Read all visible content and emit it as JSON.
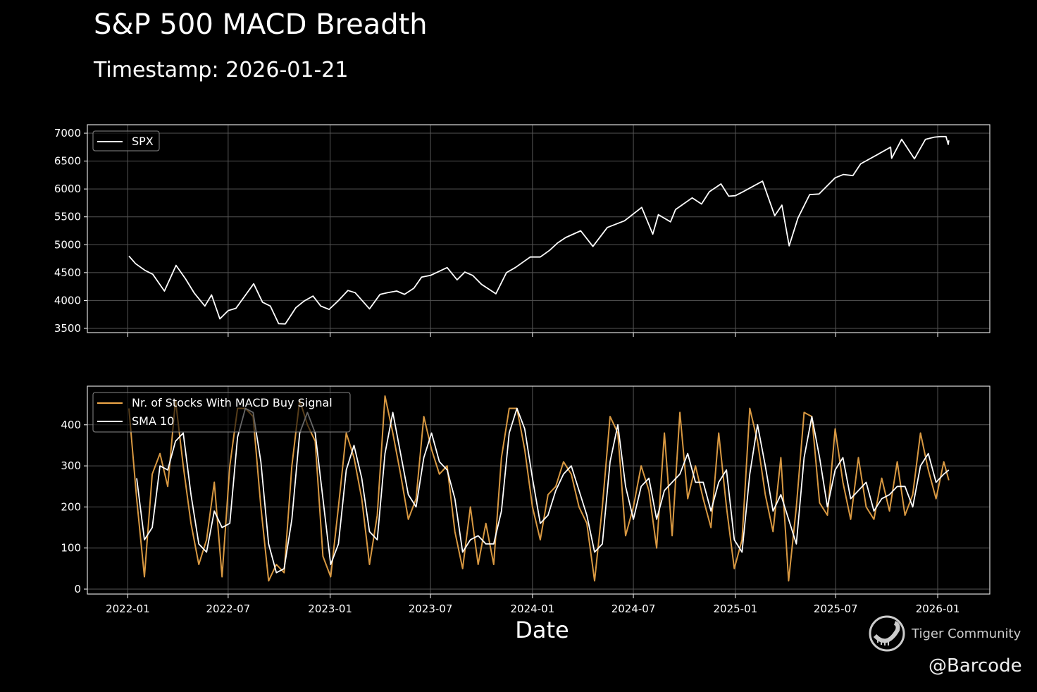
{
  "title": "S&P 500 MACD Breadth",
  "subtitle": "Timestamp: 2026-01-21",
  "watermark": {
    "brand": "Tiger Community",
    "handle": "@Barcode",
    "icon": "tiger-logo-icon"
  },
  "chart_data": [
    {
      "type": "line",
      "xlabel": "",
      "ylabel": "",
      "xlim": [
        "2021-10-20",
        "2026-04-05"
      ],
      "ylim": [
        3424,
        7152
      ],
      "yticks": [
        3500,
        4000,
        4500,
        5000,
        5500,
        6000,
        6500,
        7000
      ],
      "xticks": [
        "2022-01",
        "2022-07",
        "2023-01",
        "2023-07",
        "2024-01",
        "2024-07",
        "2025-01",
        "2025-07",
        "2026-01"
      ],
      "grid": true,
      "legend": "top-left",
      "series": [
        {
          "name": "SPX",
          "color": "#ffffff",
          "x": [
            "2022-01-03",
            "2022-01-15",
            "2022-02-01",
            "2022-02-15",
            "2022-03-08",
            "2022-03-29",
            "2022-04-15",
            "2022-05-01",
            "2022-05-20",
            "2022-06-01",
            "2022-06-16",
            "2022-07-01",
            "2022-07-15",
            "2022-08-16",
            "2022-09-01",
            "2022-09-15",
            "2022-09-30",
            "2022-10-12",
            "2022-10-31",
            "2022-11-15",
            "2022-12-01",
            "2022-12-15",
            "2022-12-30",
            "2023-01-15",
            "2023-02-02",
            "2023-02-15",
            "2023-03-13",
            "2023-04-01",
            "2023-04-15",
            "2023-05-01",
            "2023-05-15",
            "2023-06-01",
            "2023-06-15",
            "2023-07-01",
            "2023-07-31",
            "2023-08-18",
            "2023-09-01",
            "2023-09-15",
            "2023-10-01",
            "2023-10-27",
            "2023-11-15",
            "2023-12-01",
            "2023-12-28",
            "2024-01-15",
            "2024-02-01",
            "2024-02-15",
            "2024-03-01",
            "2024-03-28",
            "2024-04-19",
            "2024-05-15",
            "2024-06-15",
            "2024-07-16",
            "2024-08-05",
            "2024-08-15",
            "2024-09-06",
            "2024-09-15",
            "2024-10-15",
            "2024-11-01",
            "2024-11-15",
            "2024-12-06",
            "2024-12-20",
            "2025-01-01",
            "2025-01-15",
            "2025-02-19",
            "2025-03-13",
            "2025-03-26",
            "2025-04-08",
            "2025-04-24",
            "2025-05-15",
            "2025-06-01",
            "2025-06-30",
            "2025-07-15",
            "2025-08-01",
            "2025-08-15",
            "2025-09-15",
            "2025-10-08",
            "2025-10-10",
            "2025-10-28",
            "2025-11-20",
            "2025-12-10",
            "2025-12-26",
            "2026-01-06",
            "2026-01-16",
            "2026-01-20",
            "2026-01-21"
          ],
          "values": [
            4797,
            4660,
            4540,
            4470,
            4170,
            4630,
            4390,
            4130,
            3900,
            4100,
            3670,
            3820,
            3860,
            4300,
            3970,
            3900,
            3585,
            3580,
            3870,
            3990,
            4080,
            3900,
            3840,
            3990,
            4180,
            4140,
            3850,
            4110,
            4140,
            4170,
            4110,
            4220,
            4420,
            4450,
            4590,
            4370,
            4510,
            4450,
            4290,
            4120,
            4500,
            4590,
            4780,
            4780,
            4900,
            5030,
            5130,
            5250,
            4970,
            5310,
            5430,
            5670,
            5190,
            5540,
            5410,
            5630,
            5840,
            5730,
            5950,
            6090,
            5870,
            5880,
            5950,
            6140,
            5520,
            5710,
            4980,
            5480,
            5900,
            5910,
            6200,
            6260,
            6240,
            6450,
            6620,
            6750,
            6550,
            6890,
            6540,
            6890,
            6930,
            6940,
            6940,
            6800,
            6870
          ]
        }
      ]
    },
    {
      "type": "line",
      "xlabel": "Date",
      "ylabel": "",
      "xlim": [
        "2021-10-20",
        "2026-04-05"
      ],
      "ylim": [
        -12,
        494
      ],
      "yticks": [
        0,
        100,
        200,
        300,
        400
      ],
      "xticks": [
        "2022-01",
        "2022-07",
        "2023-01",
        "2023-07",
        "2024-01",
        "2024-07",
        "2025-01",
        "2025-07",
        "2026-01"
      ],
      "grid": true,
      "legend": "top-left",
      "x": [
        "2022-01-03",
        "2022-01-17",
        "2022-01-31",
        "2022-02-14",
        "2022-02-28",
        "2022-03-14",
        "2022-03-28",
        "2022-04-11",
        "2022-04-25",
        "2022-05-09",
        "2022-05-23",
        "2022-06-06",
        "2022-06-20",
        "2022-07-04",
        "2022-07-18",
        "2022-08-01",
        "2022-08-15",
        "2022-08-29",
        "2022-09-12",
        "2022-09-26",
        "2022-10-10",
        "2022-10-24",
        "2022-11-07",
        "2022-11-21",
        "2022-12-05",
        "2022-12-19",
        "2023-01-02",
        "2023-01-16",
        "2023-01-30",
        "2023-02-13",
        "2023-02-27",
        "2023-03-13",
        "2023-03-27",
        "2023-04-10",
        "2023-04-24",
        "2023-05-08",
        "2023-05-22",
        "2023-06-05",
        "2023-06-19",
        "2023-07-03",
        "2023-07-17",
        "2023-07-31",
        "2023-08-14",
        "2023-08-28",
        "2023-09-11",
        "2023-09-25",
        "2023-10-09",
        "2023-10-23",
        "2023-11-06",
        "2023-11-20",
        "2023-12-04",
        "2023-12-18",
        "2024-01-01",
        "2024-01-15",
        "2024-01-29",
        "2024-02-12",
        "2024-02-26",
        "2024-03-11",
        "2024-03-25",
        "2024-04-08",
        "2024-04-22",
        "2024-05-06",
        "2024-05-20",
        "2024-06-03",
        "2024-06-17",
        "2024-07-01",
        "2024-07-15",
        "2024-07-29",
        "2024-08-12",
        "2024-08-26",
        "2024-09-09",
        "2024-09-23",
        "2024-10-07",
        "2024-10-21",
        "2024-11-04",
        "2024-11-18",
        "2024-12-02",
        "2024-12-16",
        "2024-12-30",
        "2025-01-13",
        "2025-01-27",
        "2025-02-10",
        "2025-02-24",
        "2025-03-10",
        "2025-03-24",
        "2025-04-07",
        "2025-04-21",
        "2025-05-05",
        "2025-05-19",
        "2025-06-02",
        "2025-06-16",
        "2025-06-30",
        "2025-07-14",
        "2025-07-28",
        "2025-08-11",
        "2025-08-25",
        "2025-09-08",
        "2025-09-22",
        "2025-10-06",
        "2025-10-20",
        "2025-11-03",
        "2025-11-17",
        "2025-12-01",
        "2025-12-15",
        "2025-12-29",
        "2026-01-12",
        "2026-01-21"
      ],
      "series": [
        {
          "name": "Nr. of Stocks With MACD Buy Signal",
          "color": "#f0a848",
          "values": [
            440,
            220,
            30,
            280,
            330,
            250,
            460,
            300,
            160,
            60,
            120,
            260,
            30,
            300,
            440,
            440,
            420,
            200,
            20,
            60,
            40,
            300,
            460,
            400,
            360,
            80,
            30,
            200,
            380,
            320,
            220,
            60,
            180,
            470,
            380,
            280,
            170,
            220,
            420,
            340,
            280,
            300,
            140,
            50,
            200,
            60,
            160,
            60,
            320,
            440,
            440,
            340,
            200,
            120,
            230,
            250,
            310,
            280,
            200,
            160,
            20,
            200,
            420,
            380,
            130,
            200,
            300,
            240,
            100,
            380,
            130,
            430,
            220,
            300,
            220,
            150,
            380,
            200,
            50,
            120,
            440,
            360,
            230,
            140,
            320,
            20,
            200,
            430,
            420,
            210,
            180,
            390,
            260,
            170,
            320,
            200,
            170,
            270,
            190,
            310,
            180,
            230,
            380,
            290,
            220,
            310,
            265
          ]
        },
        {
          "name": "SMA 10",
          "color": "#ffffff",
          "values": [
            null,
            270,
            120,
            150,
            300,
            290,
            360,
            380,
            230,
            110,
            90,
            190,
            150,
            160,
            370,
            440,
            430,
            310,
            110,
            40,
            50,
            170,
            380,
            430,
            380,
            220,
            60,
            110,
            290,
            350,
            270,
            140,
            120,
            330,
            430,
            330,
            230,
            200,
            320,
            380,
            310,
            290,
            220,
            90,
            120,
            130,
            110,
            110,
            190,
            380,
            440,
            390,
            270,
            160,
            180,
            240,
            280,
            300,
            240,
            180,
            90,
            110,
            310,
            400,
            250,
            170,
            250,
            270,
            170,
            240,
            260,
            280,
            330,
            260,
            260,
            190,
            260,
            290,
            120,
            90,
            280,
            400,
            300,
            190,
            230,
            170,
            110,
            320,
            420,
            320,
            200,
            290,
            320,
            220,
            240,
            260,
            190,
            220,
            230,
            250,
            250,
            200,
            300,
            330,
            260,
            280,
            290
          ]
        }
      ]
    }
  ]
}
